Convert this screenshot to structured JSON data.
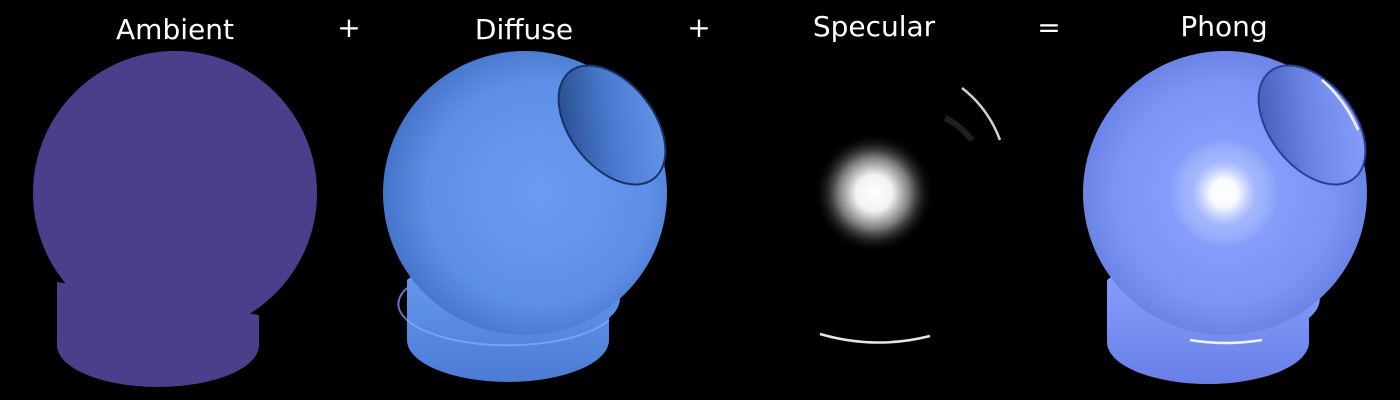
{
  "equation": {
    "terms": [
      {
        "label": "Ambient",
        "color": "#4b3f8c"
      },
      {
        "label": "Diffuse",
        "color": "#6495ed"
      },
      {
        "label": "Specular",
        "color": "#ffffff"
      },
      {
        "label": "Phong",
        "color": "#7b93f5"
      }
    ],
    "operators": [
      "+",
      "+",
      "="
    ]
  }
}
